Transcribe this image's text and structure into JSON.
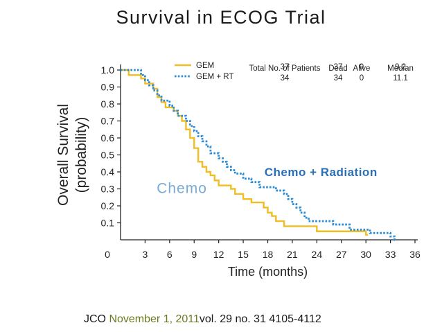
{
  "slide": {
    "title": "Survival in ECOG Trial",
    "citation": {
      "prefix": "JCO",
      "highlight": "November 1, 2011",
      "rest": "vol. 29 no. 31 4105-4112"
    }
  },
  "chart_data": {
    "type": "line",
    "title": "Survival in ECOG Trial",
    "xlabel": "Time (months)",
    "ylabel": "Overall Survival (probability)",
    "xlim": [
      0,
      36
    ],
    "ylim": [
      0,
      1.0
    ],
    "xticks": [
      3,
      6,
      9,
      12,
      15,
      18,
      21,
      24,
      27,
      30,
      33,
      36
    ],
    "yticks": [
      0.1,
      0.2,
      0.3,
      0.4,
      0.5,
      0.6,
      0.7,
      0.8,
      0.9,
      1.0
    ],
    "x_origin_label": "0",
    "series": [
      {
        "name": "GEM",
        "style": "solid",
        "color": "#f0be23",
        "steps": [
          [
            0,
            1.0
          ],
          [
            1,
            0.97
          ],
          [
            2.5,
            0.95
          ],
          [
            3,
            0.92
          ],
          [
            4,
            0.89
          ],
          [
            4.5,
            0.84
          ],
          [
            5,
            0.81
          ],
          [
            5.5,
            0.78
          ],
          [
            6.5,
            0.76
          ],
          [
            7,
            0.73
          ],
          [
            7.5,
            0.7
          ],
          [
            8,
            0.65
          ],
          [
            8.5,
            0.6
          ],
          [
            9,
            0.54
          ],
          [
            9.5,
            0.46
          ],
          [
            10,
            0.43
          ],
          [
            10.5,
            0.4
          ],
          [
            11,
            0.38
          ],
          [
            11.5,
            0.35
          ],
          [
            12,
            0.32
          ],
          [
            13.5,
            0.3
          ],
          [
            14,
            0.27
          ],
          [
            15,
            0.24
          ],
          [
            16,
            0.22
          ],
          [
            17.5,
            0.19
          ],
          [
            18,
            0.16
          ],
          [
            18.5,
            0.14
          ],
          [
            19,
            0.11
          ],
          [
            20,
            0.08
          ],
          [
            24,
            0.05
          ],
          [
            30,
            0.03
          ]
        ]
      },
      {
        "name": "GEM + RT",
        "style": "dotted",
        "color": "#2b8bd4",
        "steps": [
          [
            0,
            1.0
          ],
          [
            2.5,
            0.97
          ],
          [
            3,
            0.94
          ],
          [
            3.5,
            0.91
          ],
          [
            4,
            0.88
          ],
          [
            4.5,
            0.85
          ],
          [
            5,
            0.82
          ],
          [
            6,
            0.79
          ],
          [
            6.5,
            0.76
          ],
          [
            7,
            0.73
          ],
          [
            8,
            0.7
          ],
          [
            8.5,
            0.67
          ],
          [
            9,
            0.64
          ],
          [
            9.5,
            0.61
          ],
          [
            10,
            0.58
          ],
          [
            10.5,
            0.55
          ],
          [
            11,
            0.51
          ],
          [
            12,
            0.48
          ],
          [
            12.5,
            0.46
          ],
          [
            13,
            0.43
          ],
          [
            13.5,
            0.41
          ],
          [
            14,
            0.39
          ],
          [
            15,
            0.36
          ],
          [
            16,
            0.34
          ],
          [
            17,
            0.31
          ],
          [
            19,
            0.29
          ],
          [
            20,
            0.27
          ],
          [
            20.5,
            0.24
          ],
          [
            21,
            0.21
          ],
          [
            21.5,
            0.19
          ],
          [
            22,
            0.16
          ],
          [
            22.5,
            0.13
          ],
          [
            23,
            0.11
          ],
          [
            26,
            0.09
          ],
          [
            28,
            0.06
          ],
          [
            30.5,
            0.04
          ],
          [
            33,
            0.02
          ],
          [
            33.5,
            0.0
          ]
        ]
      }
    ],
    "table": {
      "headers": [
        "Total No. of Patients",
        "Dead",
        "Alive",
        "Median"
      ],
      "rows": [
        {
          "label": "GEM",
          "cells": [
            "37",
            "37",
            "0",
            "9.2"
          ]
        },
        {
          "label": "GEM + RT",
          "cells": [
            "34",
            "34",
            "0",
            "11.1"
          ]
        }
      ]
    },
    "annotations": [
      {
        "text": "Chemo + Radiation",
        "color": "#2b6fb6",
        "x": 24.5,
        "y": 0.4
      },
      {
        "text": "Chemo",
        "color": "#7aaad6",
        "x": 7.5,
        "y": 0.3
      }
    ]
  }
}
